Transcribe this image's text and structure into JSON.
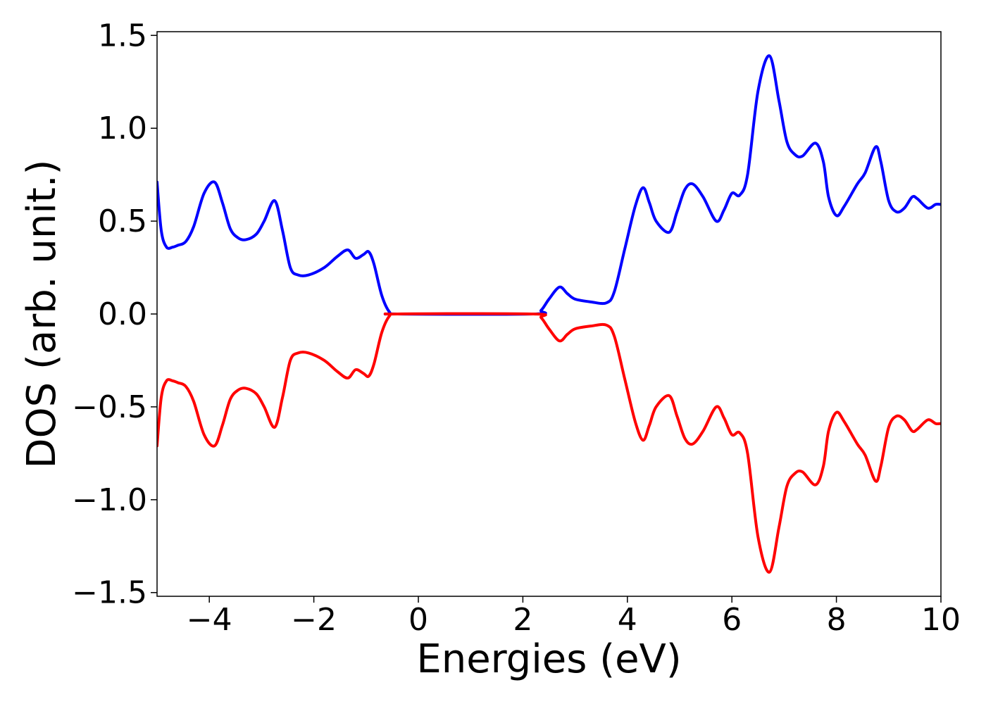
{
  "chart_data": {
    "type": "line",
    "title": "",
    "xlabel": "Energies (eV)",
    "ylabel": "DOS (arb. unit.)",
    "xlim": [
      -5,
      10
    ],
    "ylim": [
      -1.52,
      1.52
    ],
    "grid": false,
    "legend": "none",
    "xticks": [
      {
        "value": -4,
        "label": "−4"
      },
      {
        "value": -2,
        "label": "−2"
      },
      {
        "value": 0,
        "label": "0"
      },
      {
        "value": 2,
        "label": "2"
      },
      {
        "value": 4,
        "label": "4"
      },
      {
        "value": 6,
        "label": "6"
      },
      {
        "value": 8,
        "label": "8"
      },
      {
        "value": 10,
        "label": "10"
      }
    ],
    "yticks": [
      {
        "value": 1.5,
        "label": "1.5"
      },
      {
        "value": 1.0,
        "label": "1.0"
      },
      {
        "value": 0.5,
        "label": "0.5"
      },
      {
        "value": 0.0,
        "label": "0.0"
      },
      {
        "value": -0.5,
        "label": "−0.5"
      },
      {
        "value": -1.0,
        "label": "−1.0"
      },
      {
        "value": -1.5,
        "label": "−1.5"
      }
    ],
    "series": [
      {
        "color": "#0000ff",
        "points": [
          [
            -5.0,
            0.71
          ],
          [
            -4.92,
            0.45
          ],
          [
            -4.82,
            0.36
          ],
          [
            -4.7,
            0.36
          ],
          [
            -4.6,
            0.37
          ],
          [
            -4.45,
            0.39
          ],
          [
            -4.3,
            0.47
          ],
          [
            -4.1,
            0.65
          ],
          [
            -3.9,
            0.71
          ],
          [
            -3.75,
            0.6
          ],
          [
            -3.6,
            0.46
          ],
          [
            -3.45,
            0.41
          ],
          [
            -3.3,
            0.4
          ],
          [
            -3.1,
            0.43
          ],
          [
            -2.95,
            0.5
          ],
          [
            -2.75,
            0.61
          ],
          [
            -2.6,
            0.45
          ],
          [
            -2.45,
            0.25
          ],
          [
            -2.3,
            0.21
          ],
          [
            -2.1,
            0.21
          ],
          [
            -1.8,
            0.25
          ],
          [
            -1.55,
            0.31
          ],
          [
            -1.35,
            0.345
          ],
          [
            -1.2,
            0.3
          ],
          [
            -1.05,
            0.32
          ],
          [
            -0.95,
            0.335
          ],
          [
            -0.85,
            0.27
          ],
          [
            -0.7,
            0.1
          ],
          [
            -0.55,
            0.01
          ],
          [
            -0.4,
            0.0
          ],
          [
            2.2,
            0.0
          ],
          [
            2.35,
            0.02
          ],
          [
            2.5,
            0.08
          ],
          [
            2.7,
            0.145
          ],
          [
            2.85,
            0.11
          ],
          [
            3.0,
            0.08
          ],
          [
            3.3,
            0.065
          ],
          [
            3.6,
            0.06
          ],
          [
            3.75,
            0.12
          ],
          [
            3.95,
            0.35
          ],
          [
            4.15,
            0.58
          ],
          [
            4.3,
            0.68
          ],
          [
            4.42,
            0.6
          ],
          [
            4.55,
            0.5
          ],
          [
            4.8,
            0.44
          ],
          [
            4.95,
            0.55
          ],
          [
            5.1,
            0.67
          ],
          [
            5.25,
            0.7
          ],
          [
            5.45,
            0.63
          ],
          [
            5.7,
            0.5
          ],
          [
            5.85,
            0.56
          ],
          [
            6.0,
            0.65
          ],
          [
            6.15,
            0.64
          ],
          [
            6.3,
            0.75
          ],
          [
            6.5,
            1.2
          ],
          [
            6.72,
            1.39
          ],
          [
            6.9,
            1.15
          ],
          [
            7.05,
            0.93
          ],
          [
            7.2,
            0.86
          ],
          [
            7.35,
            0.85
          ],
          [
            7.6,
            0.92
          ],
          [
            7.75,
            0.82
          ],
          [
            7.85,
            0.63
          ],
          [
            8.0,
            0.53
          ],
          [
            8.15,
            0.58
          ],
          [
            8.4,
            0.7
          ],
          [
            8.55,
            0.76
          ],
          [
            8.75,
            0.9
          ],
          [
            8.85,
            0.82
          ],
          [
            9.0,
            0.61
          ],
          [
            9.15,
            0.55
          ],
          [
            9.3,
            0.57
          ],
          [
            9.45,
            0.63
          ],
          [
            9.55,
            0.62
          ],
          [
            9.75,
            0.57
          ],
          [
            9.9,
            0.59
          ],
          [
            10.0,
            0.59
          ]
        ]
      },
      {
        "color": "#ff0000",
        "points": [
          [
            -5.0,
            -0.71
          ],
          [
            -4.92,
            -0.45
          ],
          [
            -4.82,
            -0.36
          ],
          [
            -4.7,
            -0.36
          ],
          [
            -4.6,
            -0.37
          ],
          [
            -4.45,
            -0.39
          ],
          [
            -4.3,
            -0.47
          ],
          [
            -4.1,
            -0.65
          ],
          [
            -3.9,
            -0.71
          ],
          [
            -3.75,
            -0.6
          ],
          [
            -3.6,
            -0.46
          ],
          [
            -3.45,
            -0.41
          ],
          [
            -3.3,
            -0.4
          ],
          [
            -3.1,
            -0.43
          ],
          [
            -2.95,
            -0.5
          ],
          [
            -2.75,
            -0.61
          ],
          [
            -2.6,
            -0.45
          ],
          [
            -2.45,
            -0.25
          ],
          [
            -2.3,
            -0.21
          ],
          [
            -2.1,
            -0.21
          ],
          [
            -1.8,
            -0.25
          ],
          [
            -1.55,
            -0.31
          ],
          [
            -1.35,
            -0.345
          ],
          [
            -1.2,
            -0.3
          ],
          [
            -1.05,
            -0.32
          ],
          [
            -0.95,
            -0.335
          ],
          [
            -0.85,
            -0.27
          ],
          [
            -0.7,
            -0.1
          ],
          [
            -0.55,
            -0.01
          ],
          [
            -0.4,
            0.0
          ],
          [
            2.2,
            0.0
          ],
          [
            2.35,
            -0.02
          ],
          [
            2.5,
            -0.08
          ],
          [
            2.7,
            -0.145
          ],
          [
            2.85,
            -0.11
          ],
          [
            3.0,
            -0.08
          ],
          [
            3.3,
            -0.065
          ],
          [
            3.6,
            -0.06
          ],
          [
            3.75,
            -0.12
          ],
          [
            3.95,
            -0.35
          ],
          [
            4.15,
            -0.58
          ],
          [
            4.3,
            -0.68
          ],
          [
            4.42,
            -0.6
          ],
          [
            4.55,
            -0.5
          ],
          [
            4.8,
            -0.44
          ],
          [
            4.95,
            -0.55
          ],
          [
            5.1,
            -0.67
          ],
          [
            5.25,
            -0.7
          ],
          [
            5.45,
            -0.63
          ],
          [
            5.7,
            -0.5
          ],
          [
            5.85,
            -0.56
          ],
          [
            6.0,
            -0.65
          ],
          [
            6.15,
            -0.64
          ],
          [
            6.3,
            -0.75
          ],
          [
            6.5,
            -1.2
          ],
          [
            6.72,
            -1.39
          ],
          [
            6.9,
            -1.15
          ],
          [
            7.05,
            -0.93
          ],
          [
            7.2,
            -0.86
          ],
          [
            7.35,
            -0.85
          ],
          [
            7.6,
            -0.92
          ],
          [
            7.75,
            -0.82
          ],
          [
            7.85,
            -0.63
          ],
          [
            8.0,
            -0.53
          ],
          [
            8.15,
            -0.58
          ],
          [
            8.4,
            -0.7
          ],
          [
            8.55,
            -0.76
          ],
          [
            8.75,
            -0.9
          ],
          [
            8.85,
            -0.82
          ],
          [
            9.0,
            -0.61
          ],
          [
            9.15,
            -0.55
          ],
          [
            9.3,
            -0.57
          ],
          [
            9.45,
            -0.63
          ],
          [
            9.55,
            -0.62
          ],
          [
            9.75,
            -0.57
          ],
          [
            9.9,
            -0.59
          ],
          [
            10.0,
            -0.59
          ]
        ]
      }
    ]
  }
}
